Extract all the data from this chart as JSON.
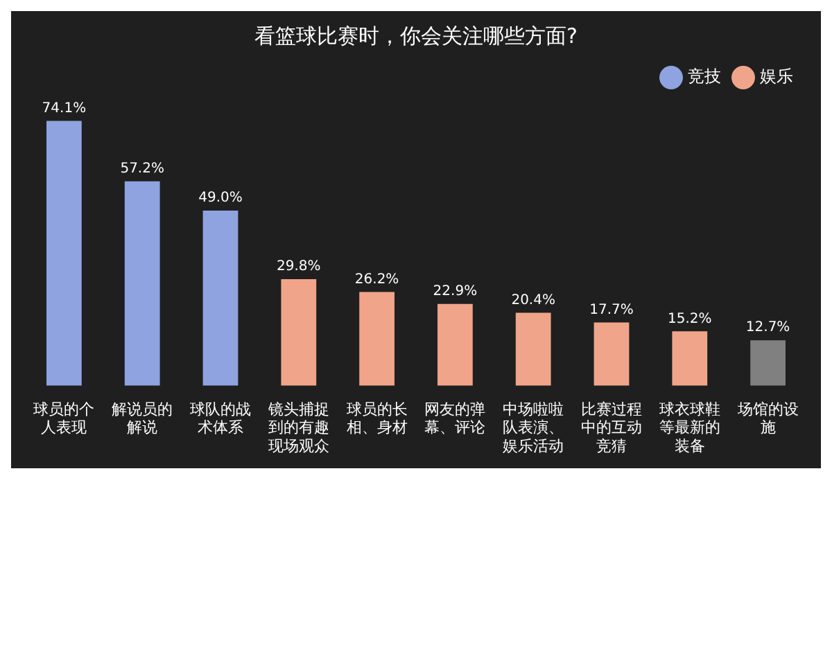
{
  "chart_data": {
    "type": "bar",
    "title": "看篮球比赛时，你会关注哪些方面?",
    "categories": [
      "球员的个人表现",
      "解说员的解说",
      "球队的战术体系",
      "镜头捕捉到的有趣现场观众",
      "球员的长相、身材",
      "网友的弹幕、评论",
      "中场啦啦队表演、娱乐活动",
      "比赛过程中的互动竞猜",
      "球衣球鞋等最新的装备",
      "场馆的设施"
    ],
    "series": [
      {
        "name": "竞技",
        "color": "#8fa3e0",
        "values": [
          74.1,
          57.2,
          49.0,
          null,
          null,
          null,
          null,
          null,
          null,
          null
        ],
        "value_labels": [
          "74.1%",
          "57.2%",
          "49.0%",
          null,
          null,
          null,
          null,
          null,
          null,
          null
        ]
      },
      {
        "name": "娱乐",
        "color": "#f0a58a",
        "values": [
          null,
          null,
          null,
          29.8,
          26.2,
          22.9,
          20.4,
          17.7,
          15.2,
          null
        ],
        "value_labels": [
          null,
          null,
          null,
          "29.8%",
          "26.2%",
          "22.9%",
          "20.4%",
          "17.7%",
          "15.2%",
          null
        ]
      },
      {
        "color": "#808080",
        "values": [
          null,
          null,
          null,
          null,
          null,
          null,
          null,
          null,
          null,
          12.7
        ],
        "value_labels": [
          null,
          null,
          null,
          null,
          null,
          null,
          null,
          null,
          null,
          "12.7%"
        ]
      }
    ],
    "legend": "top right"
  }
}
